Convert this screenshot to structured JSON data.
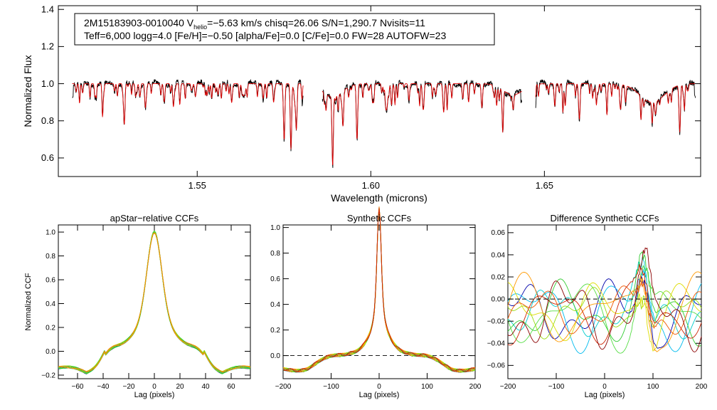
{
  "chart_data": [
    {
      "type": "line",
      "id": "spectrum",
      "info_line1_prefix": "2M15183903-0010040  V",
      "info_line1_sub": "helio",
      "info_line1_suffix": "=−5.63 km/s  chisq=26.06  S/N=1,290.7  Nvisits=11",
      "info_line2": "Teff=6,000 logg=4.0 [Fe/H]=−0.50 [alpha/Fe]=0.0 [C/Fe]=0.0 FW=28 AUTOFW=23",
      "xlabel": "Wavelength (microns)",
      "ylabel": "Normalized Flux",
      "xlim": [
        1.51,
        1.695
      ],
      "ylim": [
        0.5,
        1.42
      ],
      "xticks": [
        1.55,
        1.6,
        1.65
      ],
      "xtick_labels": [
        "1.55",
        "1.60",
        "1.65"
      ],
      "yticks": [
        0.6,
        0.8,
        1.0,
        1.2,
        1.4
      ],
      "ytick_labels": [
        "0.6",
        "0.8",
        "1.0",
        "1.2",
        "1.4"
      ],
      "chips": [
        [
          1.514,
          1.5805
        ],
        [
          1.586,
          1.6435
        ],
        [
          1.6475,
          1.6935
        ]
      ],
      "series": [
        {
          "name": "observed",
          "color": "#000000"
        },
        {
          "name": "model",
          "color": "#e00000"
        }
      ],
      "absorption_lines": [
        [
          1.517,
          0.05
        ],
        [
          1.523,
          0.06
        ],
        [
          1.529,
          0.22
        ],
        [
          1.5335,
          0.07
        ],
        [
          1.5405,
          0.1
        ],
        [
          1.545,
          0.06
        ],
        [
          1.5495,
          0.07
        ],
        [
          1.556,
          0.06
        ],
        [
          1.56,
          0.08
        ],
        [
          1.563,
          0.06
        ],
        [
          1.569,
          0.08
        ],
        [
          1.572,
          0.1
        ],
        [
          1.575,
          0.25
        ],
        [
          1.577,
          0.3
        ],
        [
          1.5785,
          0.22
        ],
        [
          1.589,
          0.3
        ],
        [
          1.592,
          0.18
        ],
        [
          1.596,
          0.22
        ],
        [
          1.6005,
          0.1
        ],
        [
          1.6045,
          0.12
        ],
        [
          1.606,
          0.1
        ],
        [
          1.611,
          0.09
        ],
        [
          1.615,
          0.12
        ],
        [
          1.621,
          0.15
        ],
        [
          1.6265,
          0.08
        ],
        [
          1.632,
          0.13
        ],
        [
          1.638,
          0.1
        ],
        [
          1.641,
          0.08
        ],
        [
          1.653,
          0.1
        ],
        [
          1.656,
          0.12
        ],
        [
          1.66,
          0.14
        ],
        [
          1.665,
          0.08
        ],
        [
          1.668,
          0.1
        ],
        [
          1.672,
          0.12
        ],
        [
          1.682,
          0.07
        ],
        [
          1.689,
          0.25
        ]
      ],
      "broad_features": [
        [
          1.589,
          0.07,
          0.004
        ],
        [
          1.641,
          0.06,
          0.004
        ],
        [
          1.681,
          0.1,
          0.005
        ]
      ]
    },
    {
      "type": "line",
      "id": "apstar_ccf",
      "title": "apStar−relative CCFs",
      "xlabel": "Lag (pixels)",
      "ylabel": "Normalized CCF",
      "xlim": [
        -75,
        75
      ],
      "ylim": [
        -0.23,
        1.06
      ],
      "xticks": [
        -60,
        -40,
        -20,
        0,
        20,
        40,
        60
      ],
      "xtick_labels": [
        "−60",
        "−40",
        "−20",
        "0",
        "20",
        "40",
        "60"
      ],
      "yticks": [
        -0.2,
        0.0,
        0.2,
        0.4,
        0.6,
        0.8,
        1.0
      ],
      "ytick_labels": [
        "−0.2",
        "0.0",
        "0.2",
        "0.4",
        "0.6",
        "0.8",
        "1.0"
      ],
      "series_colors": [
        "#0000aa",
        "#0044ff",
        "#00aaff",
        "#00cccc",
        "#00bb66",
        "#22cc22",
        "#66dd22",
        "#aacc00",
        "#ddaa00",
        "#ff8800"
      ]
    },
    {
      "type": "line",
      "id": "synthetic_ccf",
      "title": "Synthetic CCFs",
      "xlabel": "Lag (pixels)",
      "xlim": [
        -200,
        200
      ],
      "ylim": [
        -0.18,
        1.02
      ],
      "xticks": [
        -200,
        -100,
        0,
        100,
        200
      ],
      "xtick_labels": [
        "−200",
        "−100",
        "0",
        "100",
        "200"
      ],
      "yticks": [
        0.0,
        0.2,
        0.4,
        0.6,
        0.8,
        1.0
      ],
      "ytick_labels": [
        "0.0",
        "0.2",
        "0.4",
        "0.6",
        "0.8",
        "1.0"
      ],
      "zero_line": true,
      "series_colors": [
        "#000000",
        "#0000aa",
        "#0066ff",
        "#00bbee",
        "#00aa66",
        "#33cc33",
        "#99dd11",
        "#dddd00",
        "#ff9900",
        "#ee5500",
        "#cc2200"
      ]
    },
    {
      "type": "line",
      "id": "difference_ccf",
      "title": "Difference Synthetic CCFs",
      "xlabel": "Lag (pixels)",
      "xlim": [
        -200,
        200
      ],
      "ylim": [
        -0.072,
        0.067
      ],
      "xticks": [
        -200,
        -100,
        0,
        100,
        200
      ],
      "xtick_labels": [
        "−200",
        "−100",
        "0",
        "100",
        "200"
      ],
      "yticks": [
        -0.06,
        -0.04,
        -0.02,
        0.0,
        0.02,
        0.04,
        0.06
      ],
      "ytick_labels": [
        "−0.06",
        "−0.04",
        "−0.02",
        "0.00",
        "0.02",
        "0.04",
        "0.06"
      ],
      "zero_line": true,
      "series_colors": [
        "#0000aa",
        "#00bbee",
        "#00cccc",
        "#33cc33",
        "#55dd44",
        "#99dd11",
        "#dddd00",
        "#ff9900",
        "#ee5500",
        "#cc2200",
        "#8b0000"
      ]
    }
  ]
}
